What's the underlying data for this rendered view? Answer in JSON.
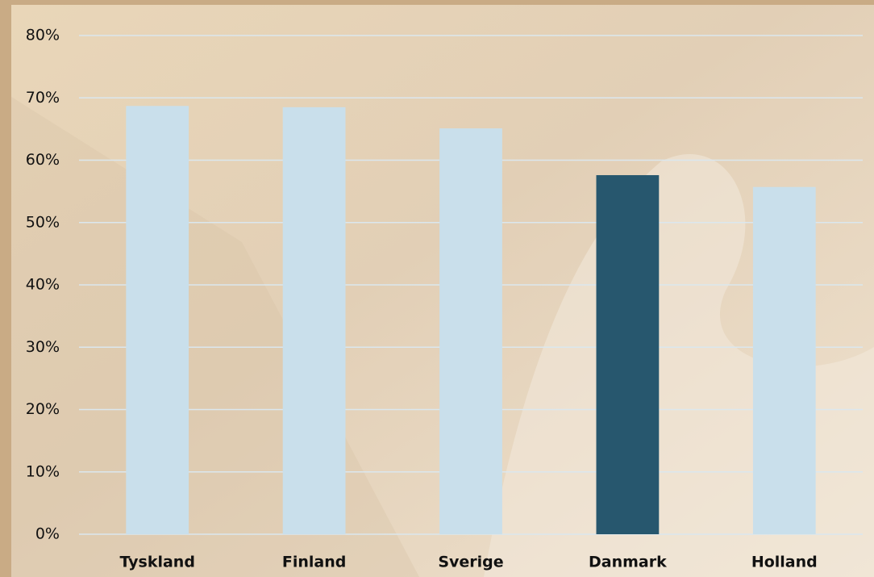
{
  "chart_data": {
    "type": "bar",
    "categories": [
      "Tyskland",
      "Finland",
      "Sverige",
      "Danmark",
      "Holland"
    ],
    "values": [
      68.7,
      68.5,
      65.1,
      57.6,
      55.7
    ],
    "colors": [
      "#c9dfeb",
      "#c9dfeb",
      "#c9dfeb",
      "#27576e",
      "#c9dfeb"
    ],
    "ylim": [
      0,
      80
    ],
    "yticks": [
      {
        "value": 0,
        "label": "0%"
      },
      {
        "value": 10,
        "label": "10%"
      },
      {
        "value": 20,
        "label": "20%"
      },
      {
        "value": 30,
        "label": "30%"
      },
      {
        "value": 40,
        "label": "40%"
      },
      {
        "value": 50,
        "label": "50%"
      },
      {
        "value": 60,
        "label": "60%"
      },
      {
        "value": 70,
        "label": "70%"
      },
      {
        "value": 80,
        "label": "80%"
      }
    ],
    "grid": true
  }
}
